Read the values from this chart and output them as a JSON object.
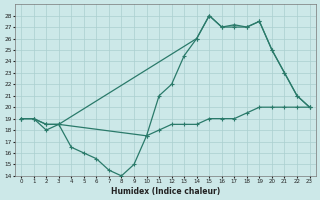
{
  "xlabel": "Humidex (Indice chaleur)",
  "bg_color": "#cce8e8",
  "grid_color": "#aacfcf",
  "line_color": "#2a7a6a",
  "xlim": [
    -0.5,
    23.5
  ],
  "ylim": [
    14,
    29
  ],
  "yticks": [
    14,
    15,
    16,
    17,
    18,
    19,
    20,
    21,
    22,
    23,
    24,
    25,
    26,
    27,
    28
  ],
  "xticks": [
    0,
    1,
    2,
    3,
    4,
    5,
    6,
    7,
    8,
    9,
    10,
    11,
    12,
    13,
    14,
    15,
    16,
    17,
    18,
    19,
    20,
    21,
    22,
    23
  ],
  "line1_x": [
    0,
    1,
    2,
    3,
    14,
    15,
    16,
    17,
    18,
    19,
    20,
    21,
    22,
    23
  ],
  "line1_y": [
    19,
    19,
    18.5,
    18.5,
    26,
    28,
    27,
    27,
    27,
    27.5,
    25,
    23,
    21,
    20
  ],
  "line2_x": [
    0,
    1,
    2,
    3,
    10,
    11,
    12,
    13,
    14,
    15,
    16,
    17,
    18,
    19,
    20,
    21,
    22,
    23
  ],
  "line2_y": [
    19,
    19,
    18.5,
    18.5,
    17.5,
    21,
    22,
    24.5,
    26,
    28,
    27,
    27.2,
    27,
    27.5,
    25,
    23,
    21,
    20
  ],
  "line3_x": [
    0,
    1,
    2,
    3,
    4,
    5,
    6,
    7,
    8,
    9,
    10,
    11,
    12,
    13,
    14,
    15,
    16,
    17,
    18,
    19,
    20,
    21,
    22,
    23
  ],
  "line3_y": [
    19,
    19,
    18,
    18.5,
    16.5,
    16,
    15.5,
    14.5,
    14,
    15,
    17.5,
    18,
    18.5,
    18.5,
    18.5,
    19,
    19,
    19,
    19.5,
    20,
    20,
    20,
    20,
    20
  ]
}
